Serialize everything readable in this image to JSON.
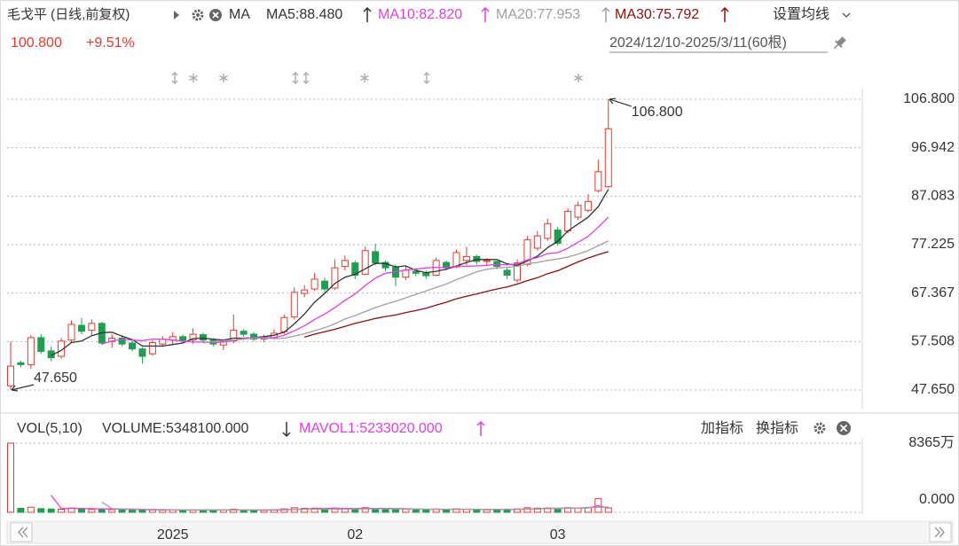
{
  "toolbar": {
    "title": "毛戈平 (日线,前复权)",
    "ma": "MA",
    "settings": "设置均线"
  },
  "quote": {
    "price": "100.800",
    "change": "+9.51%",
    "range": "2024/12/10-2025/3/11(60根)"
  },
  "indicator_bar": {
    "add": "加指标",
    "switch": "换指标"
  },
  "chart_data": [
    {
      "type": "candlestick",
      "up_color": "#e8392f",
      "down_color": "#1e9e50",
      "grid": true,
      "categories": [
        null,
        null,
        null,
        null,
        null,
        null,
        null,
        null,
        null,
        null,
        null,
        null,
        null,
        null,
        null,
        null,
        "2025",
        null,
        null,
        null,
        null,
        null,
        null,
        null,
        null,
        null,
        null,
        null,
        null,
        null,
        null,
        null,
        null,
        null,
        "02",
        null,
        null,
        null,
        null,
        null,
        null,
        null,
        null,
        null,
        null,
        null,
        null,
        null,
        null,
        null,
        null,
        null,
        null,
        null,
        "03",
        null,
        null,
        null,
        null,
        null
      ],
      "open": [
        48.5,
        53.2,
        52.8,
        58.3,
        55.6,
        54.5,
        57.8,
        60.8,
        59.8,
        61.2,
        57.5,
        58.2,
        57.2,
        56.0,
        55.0,
        57.0,
        57.8,
        58.5,
        57.8,
        58.9,
        57.8,
        56.8,
        57.6,
        59.6,
        59.0,
        58.0,
        58.3,
        59.5,
        62.5,
        67.3,
        68.2,
        69.8,
        68.4,
        72.8,
        73.5,
        71.2,
        75.8,
        73.6,
        72.6,
        70.6,
        71.8,
        71.4,
        71.0,
        73.6,
        72.7,
        74.0,
        74.8,
        73.8,
        73.8,
        72.0,
        70.0,
        73.2,
        76.5,
        78.5,
        80.2,
        80.0,
        82.8,
        84.2,
        88.2,
        89.0
      ],
      "high": [
        57.5,
        53.6,
        58.8,
        59.0,
        56.5,
        58.2,
        61.8,
        62.3,
        62.0,
        61.5,
        59.0,
        58.8,
        57.6,
        56.4,
        57.8,
        58.6,
        59.4,
        58.9,
        60.2,
        59.3,
        58.2,
        58.0,
        63.0,
        60.0,
        59.4,
        58.9,
        60.0,
        63.0,
        68.5,
        69.0,
        71.5,
        70.5,
        74.2,
        75.0,
        74.0,
        76.8,
        77.4,
        74.0,
        73.2,
        72.8,
        72.5,
        72.0,
        74.6,
        74.0,
        76.2,
        76.8,
        75.2,
        74.5,
        74.0,
        72.5,
        74.2,
        79.0,
        80.0,
        82.5,
        80.8,
        84.6,
        86.0,
        87.5,
        94.5,
        106.8
      ],
      "low": [
        47.65,
        52.3,
        52.0,
        55.0,
        53.5,
        54.0,
        57.2,
        59.0,
        58.8,
        56.8,
        56.2,
        56.5,
        55.5,
        53.0,
        54.6,
        56.4,
        57.0,
        57.2,
        57.0,
        57.3,
        56.5,
        55.8,
        57.2,
        58.5,
        57.5,
        57.4,
        58.0,
        59.0,
        62.0,
        66.5,
        67.8,
        67.5,
        68.0,
        72.0,
        70.2,
        71.0,
        73.0,
        71.8,
        68.8,
        70.0,
        70.8,
        70.2,
        70.8,
        72.0,
        72.4,
        73.0,
        73.2,
        73.0,
        72.2,
        70.2,
        69.5,
        72.8,
        76.0,
        78.0,
        77.0,
        79.5,
        82.2,
        83.8,
        87.8,
        88.8
      ],
      "close": [
        52.5,
        52.8,
        58.3,
        55.5,
        54.2,
        57.6,
        61.0,
        59.6,
        61.2,
        57.2,
        58.2,
        57.0,
        56.0,
        54.5,
        57.3,
        58.0,
        58.5,
        57.8,
        59.0,
        57.8,
        57.0,
        57.5,
        59.8,
        59.0,
        58.0,
        58.2,
        59.2,
        62.4,
        67.5,
        68.0,
        70.2,
        68.2,
        72.5,
        74.0,
        71.0,
        76.0,
        73.5,
        72.5,
        70.6,
        72.0,
        71.4,
        70.9,
        74.0,
        72.6,
        75.6,
        74.8,
        73.8,
        74.0,
        72.8,
        71.0,
        73.5,
        78.2,
        79.0,
        81.5,
        77.5,
        84.0,
        85.2,
        86.0,
        92.05,
        100.8
      ],
      "series": [
        {
          "name": "MA5:88.480",
          "color": "#333333",
          "values": [
            null,
            null,
            null,
            null,
            54.7,
            55.7,
            57.3,
            57.6,
            58.7,
            59.3,
            59.4,
            58.6,
            57.9,
            56.6,
            56.6,
            56.6,
            56.9,
            57.2,
            58.1,
            58.2,
            58.0,
            57.8,
            58.2,
            58.2,
            58.3,
            58.5,
            58.8,
            59.4,
            61.1,
            63.1,
            65.5,
            67.3,
            69.3,
            70.6,
            71.2,
            72.3,
            73.4,
            73.4,
            72.7,
            72.9,
            72.0,
            71.5,
            71.8,
            72.2,
            72.9,
            73.6,
            74.2,
            74.2,
            74.2,
            73.3,
            73.0,
            73.9,
            74.9,
            76.6,
            77.9,
            80.0,
            81.4,
            82.8,
            84.95,
            88.48
          ]
        },
        {
          "name": "MA10:82.820",
          "color": "#e040e0",
          "values": [
            null,
            null,
            null,
            null,
            null,
            null,
            null,
            null,
            null,
            57.0,
            57.6,
            58.0,
            57.8,
            57.7,
            58.0,
            58.0,
            57.8,
            57.6,
            57.4,
            57.4,
            57.3,
            57.4,
            57.7,
            58.2,
            58.3,
            58.3,
            58.3,
            58.8,
            59.7,
            60.7,
            62.0,
            63.1,
            64.4,
            65.9,
            67.2,
            68.9,
            70.4,
            71.4,
            71.7,
            72.1,
            72.2,
            72.5,
            72.6,
            72.5,
            72.9,
            72.8,
            72.9,
            73.0,
            73.2,
            73.1,
            73.3,
            74.1,
            74.6,
            75.4,
            75.6,
            76.5,
            77.7,
            78.9,
            80.8,
            82.82
          ]
        },
        {
          "name": "MA20:77.953",
          "color": "#a0a0a0",
          "values": [
            null,
            null,
            null,
            null,
            null,
            null,
            null,
            null,
            null,
            null,
            null,
            null,
            null,
            null,
            null,
            null,
            null,
            null,
            null,
            57.2,
            57.5,
            57.7,
            57.8,
            58.0,
            58.2,
            58.2,
            58.1,
            58.2,
            58.6,
            59.1,
            59.7,
            60.3,
            61.1,
            62.1,
            62.8,
            63.6,
            64.4,
            65.1,
            65.7,
            66.4,
            67.1,
            67.8,
            68.5,
            69.2,
            70.1,
            70.9,
            71.7,
            72.2,
            72.5,
            72.6,
            72.8,
            73.3,
            73.6,
            74.0,
            74.3,
            74.7,
            75.3,
            76.0,
            77.0,
            77.953
          ]
        },
        {
          "name": "MA30:75.792",
          "color": "#8b1010",
          "values": [
            null,
            null,
            null,
            null,
            null,
            null,
            null,
            null,
            null,
            null,
            null,
            null,
            null,
            null,
            null,
            null,
            null,
            null,
            null,
            null,
            null,
            null,
            null,
            null,
            null,
            null,
            null,
            null,
            null,
            58.4,
            59.0,
            59.5,
            60.0,
            60.6,
            61.2,
            61.7,
            62.2,
            62.6,
            62.9,
            63.4,
            63.8,
            64.3,
            64.9,
            65.5,
            66.2,
            66.7,
            67.2,
            67.7,
            68.2,
            68.6,
            69.2,
            69.9,
            70.5,
            71.3,
            71.9,
            72.8,
            73.7,
            74.5,
            75.2,
            75.792
          ]
        }
      ],
      "annotations": [
        {
          "value": 106.8,
          "label": "106.800"
        },
        {
          "value": 47.65,
          "label": "47.650"
        }
      ],
      "ylim": [
        43.68,
        108.96
      ],
      "yticks": [
        {
          "value": 47.65,
          "label": "47.650"
        },
        57.508,
        67.367,
        77.225,
        87.083,
        96.942,
        {
          "value": 106.8,
          "label": "106.800"
        }
      ]
    },
    {
      "type": "bar",
      "title": "VOL(5,10)",
      "grid": true,
      "series": [
        {
          "name": "VOLUME:5348100.000",
          "values": [
            8365,
            480,
            620,
            450,
            400,
            380,
            520,
            400,
            360,
            420,
            330,
            300,
            280,
            350,
            300,
            280,
            320,
            260,
            300,
            280,
            250,
            270,
            380,
            300,
            260,
            240,
            300,
            420,
            560,
            480,
            500,
            420,
            520,
            480,
            400,
            560,
            480,
            400,
            420,
            360,
            340,
            320,
            400,
            340,
            420,
            380,
            340,
            300,
            320,
            340,
            420,
            560,
            500,
            520,
            440,
            560,
            520,
            600,
            1650,
            534.81
          ]
        },
        {
          "name": "MAVOL1:5233020.000",
          "color": "#e040e0",
          "values": [
            null,
            null,
            null,
            null,
            2063,
            470,
            474,
            474,
            436,
            416,
            406,
            370,
            338,
            336,
            312,
            302,
            306,
            302,
            292,
            288,
            282,
            276,
            296,
            296,
            292,
            280,
            290,
            304,
            356,
            400,
            452,
            476,
            484,
            480,
            464,
            480,
            476,
            468,
            452,
            444,
            400,
            368,
            364,
            356,
            364,
            372,
            380,
            360,
            360,
            344,
            350,
            396,
            420,
            468,
            488,
            520,
            504,
            530,
            790,
            523.3
          ]
        },
        {
          "color": "#a0a0a0",
          "values": [
            null,
            null,
            null,
            null,
            null,
            null,
            null,
            null,
            null,
            1240,
            440,
            420,
            400,
            380,
            360,
            330,
            320,
            310,
            305,
            300,
            295,
            295,
            300,
            300,
            300,
            300,
            320,
            340,
            350,
            360,
            370,
            380,
            390,
            400,
            410,
            420,
            420,
            420,
            410,
            400,
            390,
            385,
            380,
            375,
            370,
            365,
            360,
            355,
            360,
            370,
            380,
            400,
            420,
            440,
            460,
            480,
            520,
            560,
            600,
            650
          ]
        }
      ],
      "ylim": [
        0,
        8365
      ],
      "yticks": [
        {
          "value": 8365,
          "label": "8365万"
        },
        {
          "value": 0,
          "label": "0.000"
        }
      ]
    }
  ]
}
